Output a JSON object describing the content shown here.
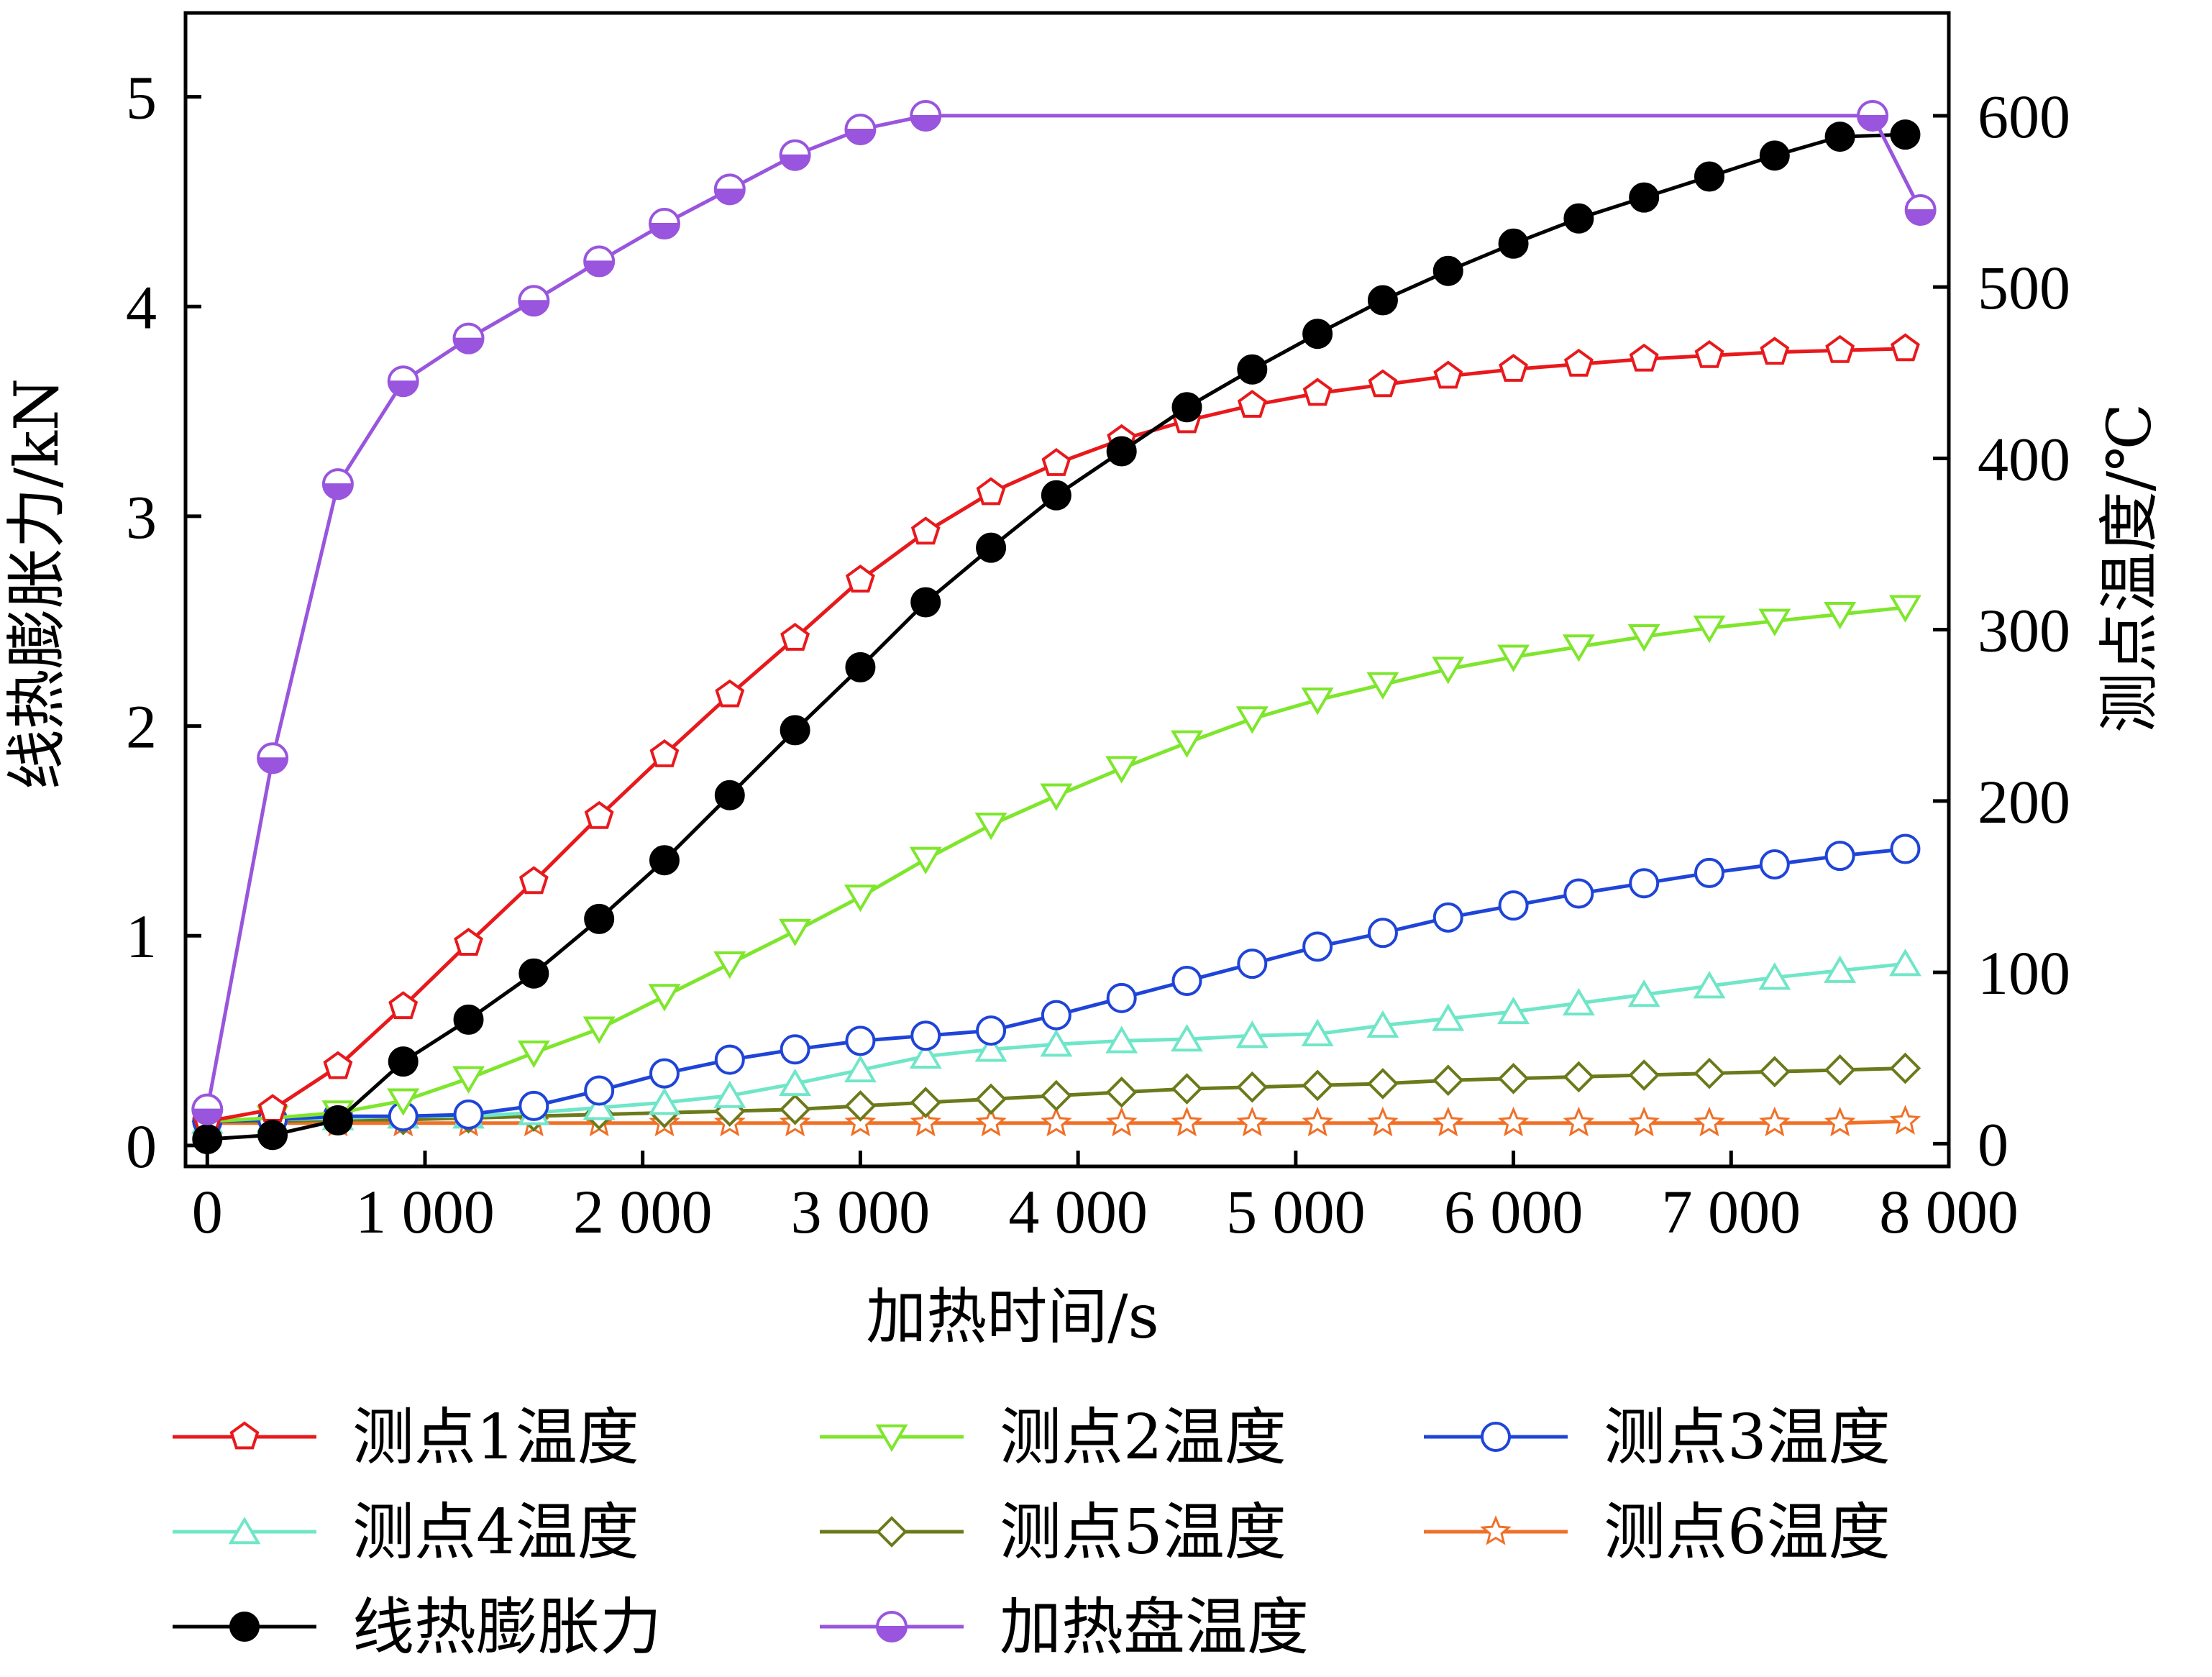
{
  "chart_data": {
    "type": "line",
    "title": "",
    "xlabel": "加热时间/s",
    "ylabel_left": "线热膨胀力/kN",
    "ylabel_right": "测点温度/℃",
    "xlim": [
      -100,
      8000
    ],
    "ylim_left": [
      -0.1,
      5.4
    ],
    "ylim_right": [
      -13.3,
      660
    ],
    "x_ticks": [
      0,
      1000,
      2000,
      3000,
      4000,
      5000,
      6000,
      7000,
      8000
    ],
    "x_tick_labels": [
      "0",
      "1 000",
      "2 000",
      "3 000",
      "4 000",
      "5 000",
      "6 000",
      "7 000",
      "8 000"
    ],
    "y_left_ticks": [
      0,
      1,
      2,
      3,
      4,
      5
    ],
    "y_left_tick_labels": [
      "0",
      "1",
      "2",
      "3",
      "4",
      "5"
    ],
    "y_right_ticks": [
      0,
      100,
      200,
      300,
      400,
      500,
      600
    ],
    "y_right_tick_labels": [
      "0",
      "100",
      "200",
      "300",
      "400",
      "500",
      "600"
    ],
    "grid": false,
    "legend_position": "bottom",
    "x_common": [
      0,
      300,
      600,
      900,
      1200,
      1500,
      1800,
      2100,
      2400,
      2700,
      3000,
      3300,
      3600,
      3900,
      4200,
      4500,
      4800,
      5100,
      5400,
      5700,
      6000,
      6300,
      6600,
      6900,
      7200,
      7500,
      7800
    ],
    "series": [
      {
        "name": "测点1温度",
        "axis": "right",
        "color": "#e8191c",
        "marker": "pentagon",
        "x": [
          0,
          300,
          600,
          900,
          1200,
          1500,
          1800,
          2100,
          2400,
          2700,
          3000,
          3300,
          3600,
          3900,
          4200,
          4500,
          4800,
          5100,
          5400,
          5700,
          6000,
          6300,
          6600,
          6900,
          7200,
          7500,
          7800
        ],
        "y": [
          13,
          20,
          45,
          80,
          117,
          153,
          191,
          227,
          262,
          295,
          329,
          357,
          380,
          397,
          411,
          422,
          431,
          438,
          443,
          448,
          452,
          455,
          458,
          460,
          462,
          463,
          464
        ]
      },
      {
        "name": "测点2温度",
        "axis": "right",
        "color": "#7ee62c",
        "marker": "triangle-down",
        "x": [
          0,
          300,
          600,
          900,
          1200,
          1500,
          1800,
          2100,
          2400,
          2700,
          3000,
          3300,
          3600,
          3900,
          4200,
          4500,
          4800,
          5100,
          5400,
          5700,
          6000,
          6300,
          6600,
          6900,
          7200,
          7500,
          7800
        ],
        "y": [
          13,
          15,
          18,
          25,
          38,
          53,
          67,
          86,
          105,
          124,
          144,
          166,
          186,
          203,
          219,
          234,
          248,
          259,
          268,
          277,
          284,
          290,
          296,
          301,
          305,
          309,
          313
        ]
      },
      {
        "name": "测点3温度",
        "axis": "right",
        "color": "#1f44d8",
        "marker": "circle",
        "x": [
          0,
          300,
          600,
          900,
          1200,
          1500,
          1800,
          2100,
          2400,
          2700,
          3000,
          3300,
          3600,
          3900,
          4200,
          4500,
          4800,
          5100,
          5400,
          5700,
          6000,
          6300,
          6600,
          6900,
          7200,
          7500,
          7800
        ],
        "y": [
          13,
          14,
          16,
          16,
          17,
          22,
          31,
          41,
          49,
          55,
          60,
          63,
          66,
          75,
          85,
          95,
          105,
          115,
          123,
          132,
          139,
          146,
          152,
          158,
          163,
          168,
          172
        ]
      },
      {
        "name": "测点4温度",
        "axis": "right",
        "color": "#70e6c8",
        "marker": "triangle-up",
        "x": [
          0,
          300,
          600,
          900,
          1200,
          1500,
          1800,
          2100,
          2400,
          2700,
          3000,
          3300,
          3600,
          3900,
          4200,
          4500,
          4800,
          5100,
          5400,
          5700,
          6000,
          6300,
          6600,
          6900,
          7200,
          7500,
          7800
        ],
        "y": [
          13,
          14,
          15,
          16,
          16,
          18,
          21,
          24,
          28,
          35,
          43,
          51,
          55,
          58,
          60,
          61,
          63,
          64,
          69,
          73,
          77,
          82,
          87,
          92,
          97,
          101,
          105
        ]
      },
      {
        "name": "测点5温度",
        "axis": "right",
        "color": "#6b7a1a",
        "marker": "diamond",
        "x": [
          0,
          300,
          600,
          900,
          1200,
          1500,
          1800,
          2100,
          2400,
          2700,
          3000,
          3300,
          3600,
          3900,
          4200,
          4500,
          4800,
          5100,
          5400,
          5700,
          6000,
          6300,
          6600,
          6900,
          7200,
          7500,
          7800
        ],
        "y": [
          13,
          13,
          14,
          14,
          15,
          16,
          17,
          18,
          19,
          20,
          22,
          24,
          26,
          28,
          30,
          32,
          33,
          34,
          35,
          37,
          38,
          39,
          40,
          41,
          42,
          43,
          44
        ]
      },
      {
        "name": "测点6温度",
        "axis": "right",
        "color": "#f07028",
        "marker": "star",
        "x": [
          0,
          300,
          600,
          900,
          1200,
          1500,
          1800,
          2100,
          2400,
          2700,
          3000,
          3300,
          3600,
          3900,
          4200,
          4500,
          4800,
          5100,
          5400,
          5700,
          6000,
          6300,
          6600,
          6900,
          7200,
          7500,
          7800
        ],
        "y": [
          12,
          12,
          12,
          12,
          12,
          12,
          12,
          12,
          12,
          12,
          12,
          12,
          12,
          12,
          12,
          12,
          12,
          12,
          12,
          12,
          12,
          12,
          12,
          12,
          12,
          12,
          13
        ]
      },
      {
        "name": "线热膨胀力",
        "axis": "left",
        "color": "#000000",
        "marker": "filled-circle",
        "x": [
          0,
          300,
          600,
          900,
          1200,
          1500,
          1800,
          2100,
          2400,
          2700,
          3000,
          3300,
          3600,
          3900,
          4200,
          4500,
          4800,
          5100,
          5400,
          5700,
          6000,
          6300,
          6600,
          6900,
          7200,
          7500,
          7800
        ],
        "y": [
          0.03,
          0.05,
          0.12,
          0.4,
          0.6,
          0.82,
          1.08,
          1.36,
          1.67,
          1.98,
          2.28,
          2.59,
          2.85,
          3.1,
          3.31,
          3.52,
          3.7,
          3.87,
          4.03,
          4.17,
          4.3,
          4.42,
          4.52,
          4.62,
          4.72,
          4.81,
          4.82
        ]
      },
      {
        "name": "加热盘温度",
        "axis": "right",
        "color": "#9955dd",
        "marker": "half-filled-circle",
        "x": [
          0,
          300,
          600,
          900,
          1200,
          1500,
          1800,
          2100,
          2400,
          2700,
          3000,
          3300,
          7650,
          7870
        ],
        "y": [
          20,
          225,
          385,
          445,
          470,
          492,
          515,
          537,
          557,
          577,
          592,
          600,
          600,
          545
        ]
      }
    ]
  }
}
